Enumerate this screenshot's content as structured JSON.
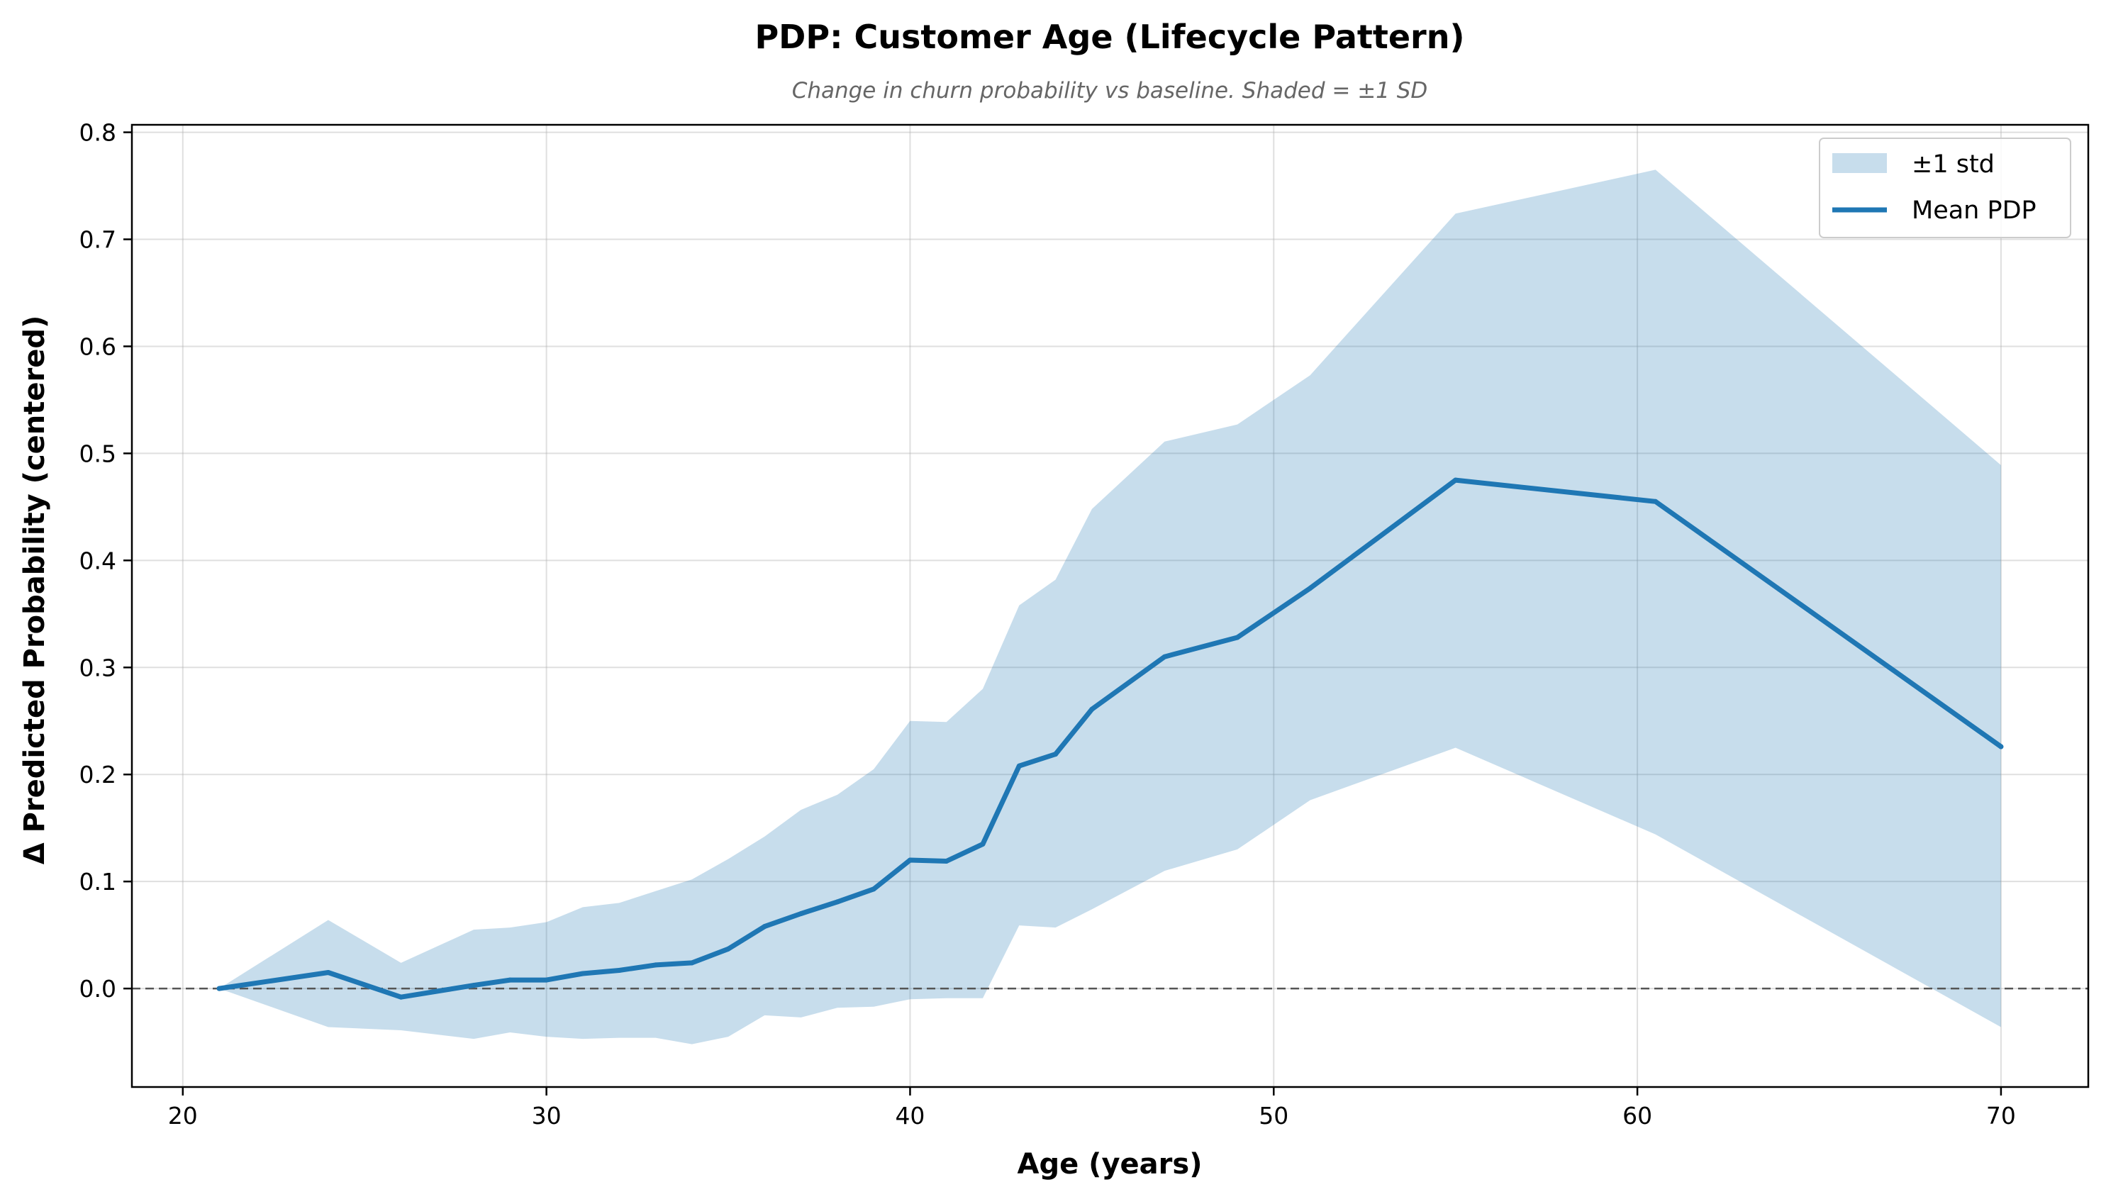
{
  "chart_data": {
    "type": "line",
    "title": "PDP: Customer Age (Lifecycle Pattern)",
    "subtitle": "Change in churn probability vs baseline. Shaded = ±1 SD",
    "xlabel": "Age (years)",
    "ylabel": "Δ Predicted Probability (centered)",
    "xlim": [
      18.6,
      72.4
    ],
    "ylim": [
      -0.092,
      0.807
    ],
    "xticks": [
      20,
      30,
      40,
      50,
      60,
      70
    ],
    "yticks": [
      0.0,
      0.1,
      0.2,
      0.3,
      0.4,
      0.5,
      0.6,
      0.7,
      0.8
    ],
    "xtick_labels": [
      "20",
      "30",
      "40",
      "50",
      "60",
      "70"
    ],
    "ytick_labels": [
      "0.0",
      "0.1",
      "0.2",
      "0.3",
      "0.4",
      "0.5",
      "0.6",
      "0.7",
      "0.8"
    ],
    "grid": true,
    "baseline_y": 0.0,
    "legend_position": "upper right",
    "series": [
      {
        "name": "Mean PDP",
        "kind": "line",
        "color": "#1f77b4",
        "x": [
          21,
          24,
          26,
          28,
          29,
          30,
          31,
          32,
          33,
          34,
          35,
          36,
          37,
          38,
          39,
          40,
          41,
          42,
          43,
          44,
          45,
          47,
          49,
          51,
          55,
          60.5,
          70
        ],
        "y": [
          0.0,
          0.015,
          -0.008,
          0.003,
          0.008,
          0.008,
          0.014,
          0.017,
          0.022,
          0.024,
          0.037,
          0.058,
          0.07,
          0.081,
          0.093,
          0.12,
          0.119,
          0.135,
          0.208,
          0.219,
          0.261,
          0.31,
          0.328,
          0.374,
          0.475,
          0.455,
          0.226
        ]
      },
      {
        "name": "±1 std",
        "kind": "band",
        "color": "#1f77b4",
        "alpha": 0.25,
        "x": [
          21,
          24,
          26,
          28,
          29,
          30,
          31,
          32,
          33,
          34,
          35,
          36,
          37,
          38,
          39,
          40,
          41,
          42,
          43,
          44,
          45,
          47,
          49,
          51,
          55,
          60.5,
          70
        ],
        "upper": [
          0.0,
          0.064,
          0.024,
          0.055,
          0.057,
          0.062,
          0.076,
          0.08,
          0.091,
          0.102,
          0.121,
          0.142,
          0.167,
          0.181,
          0.205,
          0.25,
          0.249,
          0.28,
          0.358,
          0.382,
          0.448,
          0.511,
          0.527,
          0.573,
          0.724,
          0.765,
          0.489
        ],
        "lower": [
          0.0,
          -0.036,
          -0.039,
          -0.047,
          -0.041,
          -0.045,
          -0.047,
          -0.046,
          -0.046,
          -0.052,
          -0.045,
          -0.025,
          -0.027,
          -0.018,
          -0.017,
          -0.01,
          -0.009,
          -0.009,
          0.059,
          0.057,
          0.074,
          0.11,
          0.13,
          0.176,
          0.225,
          0.144,
          -0.036
        ]
      }
    ]
  },
  "colors": {
    "line": "#1f77b4",
    "band": "#1f77b4",
    "grid": "#b0b0b0",
    "baseline": "#555555",
    "subtitle": "#666666"
  }
}
